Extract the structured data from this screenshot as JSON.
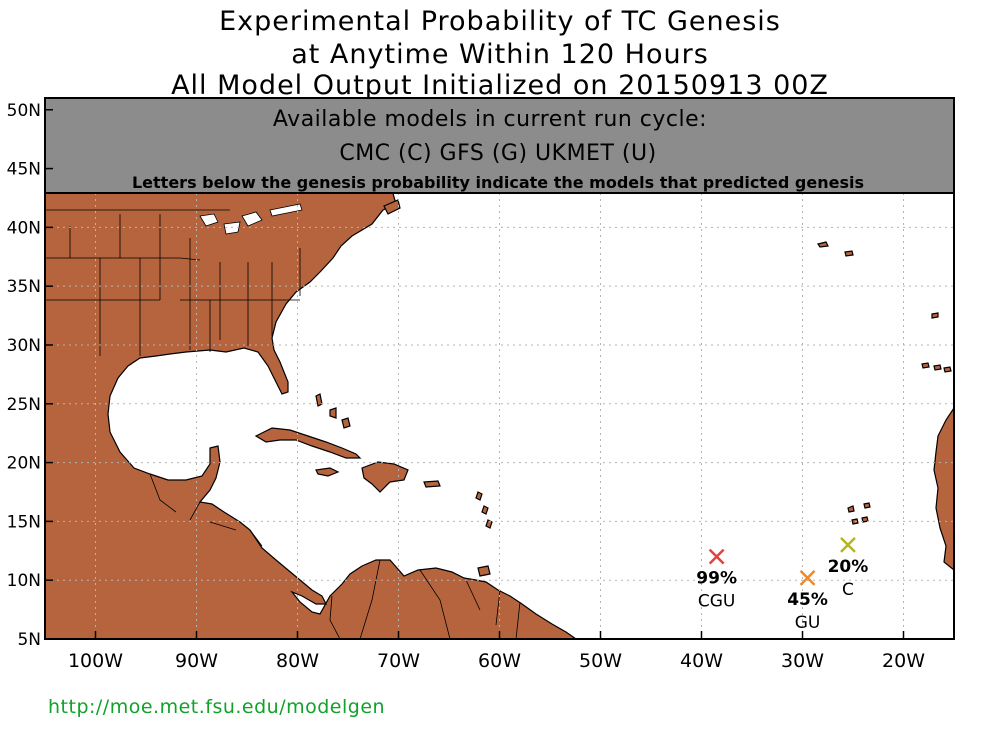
{
  "title": {
    "line1": "Experimental Probability of TC Genesis",
    "line2": "at Anytime Within 120 Hours",
    "line3": "All Model Output Initialized on 20150913 00Z"
  },
  "banner": {
    "line1": "Available models in current run cycle:",
    "line2": "CMC (C) GFS (G)  UKMET (U)",
    "line3": "Letters below the genesis probability indicate the models that predicted genesis"
  },
  "map": {
    "lon_labels": [
      "100W",
      "90W",
      "80W",
      "70W",
      "60W",
      "50W",
      "40W",
      "30W",
      "20W"
    ],
    "lat_labels": [
      "50N",
      "45N",
      "40N",
      "35N",
      "30N",
      "25N",
      "20N",
      "15N",
      "10N",
      "5N"
    ],
    "land_color": "#b5643e",
    "ocean_color": "#ffffff",
    "banner_color": "#8c8c8c",
    "grid": "dotted"
  },
  "genesis_points": [
    {
      "lon": -38.5,
      "lat": 12.0,
      "probability": "99%",
      "models": "CGU",
      "color": "#e8403a"
    },
    {
      "lon": -29.5,
      "lat": 10.2,
      "probability": "45%",
      "models": "GU",
      "color": "#f08a28"
    },
    {
      "lon": -25.5,
      "lat": 13.0,
      "probability": "20%",
      "models": "C",
      "color": "#b5b520"
    }
  ],
  "footer_url": "http://moe.met.fsu.edu/modelgen"
}
